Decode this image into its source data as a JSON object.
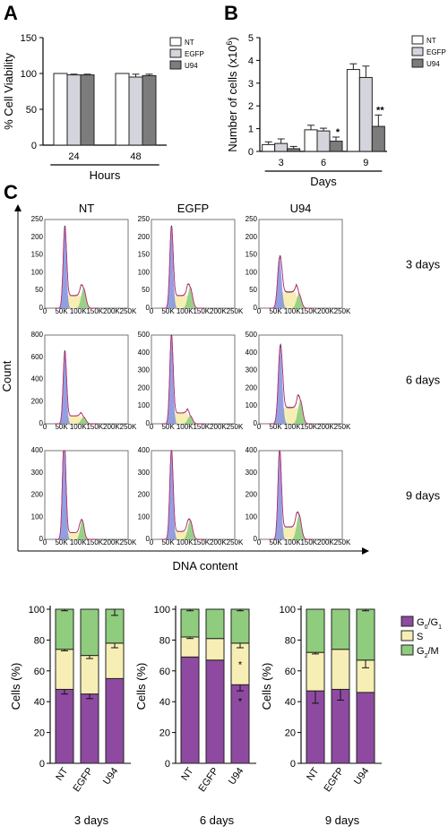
{
  "panels": {
    "A": "A",
    "B": "B",
    "C": "C"
  },
  "colors": {
    "NT": "#ffffff",
    "EGFP": "#d4d4dc",
    "U94": "#7c7c7c",
    "G0G1": "#8e4aa0",
    "S": "#f6eeb4",
    "G2M": "#8fcc7d",
    "flow_fit": "#cc2a78",
    "flow_raw": "#333333",
    "flow_g1_fill": "#7f8fdc"
  },
  "chart_data": [
    {
      "id": "panel-A",
      "type": "bar",
      "ylabel": "% Cell Viability",
      "xlabel": "Hours",
      "categories": [
        "24",
        "48"
      ],
      "ylim": [
        0,
        150
      ],
      "yticks": [
        0,
        50,
        100,
        150
      ],
      "series": [
        {
          "name": "NT",
          "values": [
            100,
            100
          ],
          "errors": [
            0,
            0
          ]
        },
        {
          "name": "EGFP",
          "values": [
            98,
            95
          ],
          "errors": [
            1,
            4
          ]
        },
        {
          "name": "U94",
          "values": [
            98,
            97
          ],
          "errors": [
            1,
            2
          ]
        }
      ],
      "legend": "top-right"
    },
    {
      "id": "panel-B",
      "type": "bar",
      "ylabel": "Number of cells (x10",
      "ylabel_sup": "6",
      "ylabel_end": ")",
      "xlabel": "Days",
      "categories": [
        "3",
        "6",
        "9"
      ],
      "ylim": [
        0,
        5
      ],
      "yticks": [
        0,
        1,
        2,
        3,
        4,
        5
      ],
      "series": [
        {
          "name": "NT",
          "values": [
            0.3,
            0.95,
            3.6
          ],
          "errors": [
            0.12,
            0.2,
            0.25
          ]
        },
        {
          "name": "EGFP",
          "values": [
            0.35,
            0.9,
            3.25
          ],
          "errors": [
            0.2,
            0.12,
            0.5
          ]
        },
        {
          "name": "U94",
          "values": [
            0.12,
            0.45,
            1.1
          ],
          "errors": [
            0.1,
            0.18,
            0.5
          ]
        }
      ],
      "annotations": [
        {
          "category": "6",
          "series": "U94",
          "text": "*"
        },
        {
          "category": "9",
          "series": "U94",
          "text": "**"
        }
      ],
      "legend": "top-right"
    },
    {
      "id": "panel-C-flow",
      "type": "area",
      "xlabel": "DNA content",
      "ylabel": "Count",
      "columns": [
        "NT",
        "EGFP",
        "U94"
      ],
      "rows": [
        "3 days",
        "6 days",
        "9 days"
      ],
      "x_ticks": [
        "0",
        "50K",
        "100K",
        "150K",
        "200K",
        "250K"
      ],
      "y_ticks": [
        [
          [
            "0",
            "50",
            "100",
            "150",
            "200",
            "250"
          ],
          [
            "0",
            "50",
            "100",
            "150",
            "200",
            "250"
          ],
          [
            "0",
            "50",
            "100",
            "150",
            "200",
            "250"
          ]
        ],
        [
          [
            "0",
            "200",
            "400",
            "600",
            "800"
          ],
          [
            "0",
            "100",
            "200",
            "300",
            "400",
            "500"
          ],
          [
            "0",
            "100",
            "200",
            "300",
            "400",
            "500"
          ]
        ],
        [
          [
            "0",
            "100",
            "200",
            "300",
            "400"
          ],
          [
            "0",
            "100",
            "200",
            "300",
            "400"
          ],
          [
            "0",
            "100",
            "200",
            "300",
            "400"
          ]
        ]
      ],
      "ymax": [
        [
          250,
          250,
          250
        ],
        [
          800,
          500,
          500
        ],
        [
          400,
          400,
          400
        ]
      ],
      "peaks": [
        [
          {
            "g1_mean": 60,
            "g1_h": 225,
            "g1_sd": 5,
            "s_level": 35,
            "g2_mean": 116,
            "g2_h": 55,
            "g2_sd": 7
          },
          {
            "g1_mean": 60,
            "g1_h": 225,
            "g1_sd": 5,
            "s_level": 35,
            "g2_mean": 116,
            "g2_h": 58,
            "g2_sd": 7
          },
          {
            "g1_mean": 62,
            "g1_h": 140,
            "g1_sd": 6,
            "s_level": 45,
            "g2_mean": 120,
            "g2_h": 40,
            "g2_sd": 7
          }
        ],
        [
          {
            "g1_mean": 60,
            "g1_h": 640,
            "g1_sd": 5,
            "s_level": 70,
            "g2_mean": 116,
            "g2_h": 60,
            "g2_sd": 7
          },
          {
            "g1_mean": 60,
            "g1_h": 490,
            "g1_sd": 5,
            "s_level": 60,
            "g2_mean": 116,
            "g2_h": 45,
            "g2_sd": 7
          },
          {
            "g1_mean": 64,
            "g1_h": 430,
            "g1_sd": 6,
            "s_level": 90,
            "g2_mean": 124,
            "g2_h": 130,
            "g2_sd": 7
          }
        ],
        [
          {
            "g1_mean": 58,
            "g1_h": 460,
            "g1_sd": 5,
            "s_level": 30,
            "g2_mean": 112,
            "g2_h": 85,
            "g2_sd": 6
          },
          {
            "g1_mean": 60,
            "g1_h": 400,
            "g1_sd": 5,
            "s_level": 35,
            "g2_mean": 116,
            "g2_h": 85,
            "g2_sd": 7
          },
          {
            "g1_mean": 62,
            "g1_h": 400,
            "g1_sd": 5,
            "s_level": 55,
            "g2_mean": 120,
            "g2_h": 110,
            "g2_sd": 7
          }
        ]
      ]
    },
    {
      "id": "panel-C-stacked",
      "type": "bar",
      "stacked": true,
      "ylabel": "Cells (%)",
      "ylim": [
        0,
        100
      ],
      "yticks": [
        0,
        20,
        40,
        60,
        80,
        100
      ],
      "categories": [
        "NT",
        "EGFP",
        "U94"
      ],
      "legend": {
        "position": "right",
        "entries": [
          {
            "key": "G0G1",
            "label": "G",
            "sub1": "0",
            "mid": "/G",
            "sub2": "1"
          },
          {
            "key": "S",
            "label": "S"
          },
          {
            "key": "G2M",
            "label": "G",
            "sub1": "2",
            "mid": "/M",
            "sub2": ""
          }
        ]
      },
      "groups": [
        {
          "title": "3 days",
          "G0G1": [
            48,
            45,
            55
          ],
          "G0G1_err": [
            3,
            3,
            0
          ],
          "S": [
            26,
            25,
            23
          ],
          "S_err": [
            1,
            2,
            3
          ],
          "G2M": [
            26,
            30,
            22
          ],
          "G2M_err": [
            1,
            0,
            4
          ],
          "stars": []
        },
        {
          "title": "6 days",
          "G0G1": [
            69,
            67,
            51
          ],
          "G0G1_err": [
            0,
            0,
            4
          ],
          "S": [
            13,
            14,
            27
          ],
          "S_err": [
            1,
            0,
            3
          ],
          "G2M": [
            18,
            19,
            22
          ],
          "G2M_err": [
            1,
            0,
            1
          ],
          "stars": [
            {
              "bar": 2,
              "at": 69,
              "text": "*"
            },
            {
              "bar": 2,
              "at": 45,
              "text": "*"
            }
          ]
        },
        {
          "title": "9 days",
          "G0G1": [
            47,
            48,
            46
          ],
          "G0G1_err": [
            8,
            7,
            0
          ],
          "S": [
            25,
            26,
            21
          ],
          "S_err": [
            1,
            0,
            5
          ],
          "G2M": [
            28,
            26,
            33
          ],
          "G2M_err": [
            0,
            0,
            1
          ],
          "stars": []
        }
      ]
    }
  ]
}
